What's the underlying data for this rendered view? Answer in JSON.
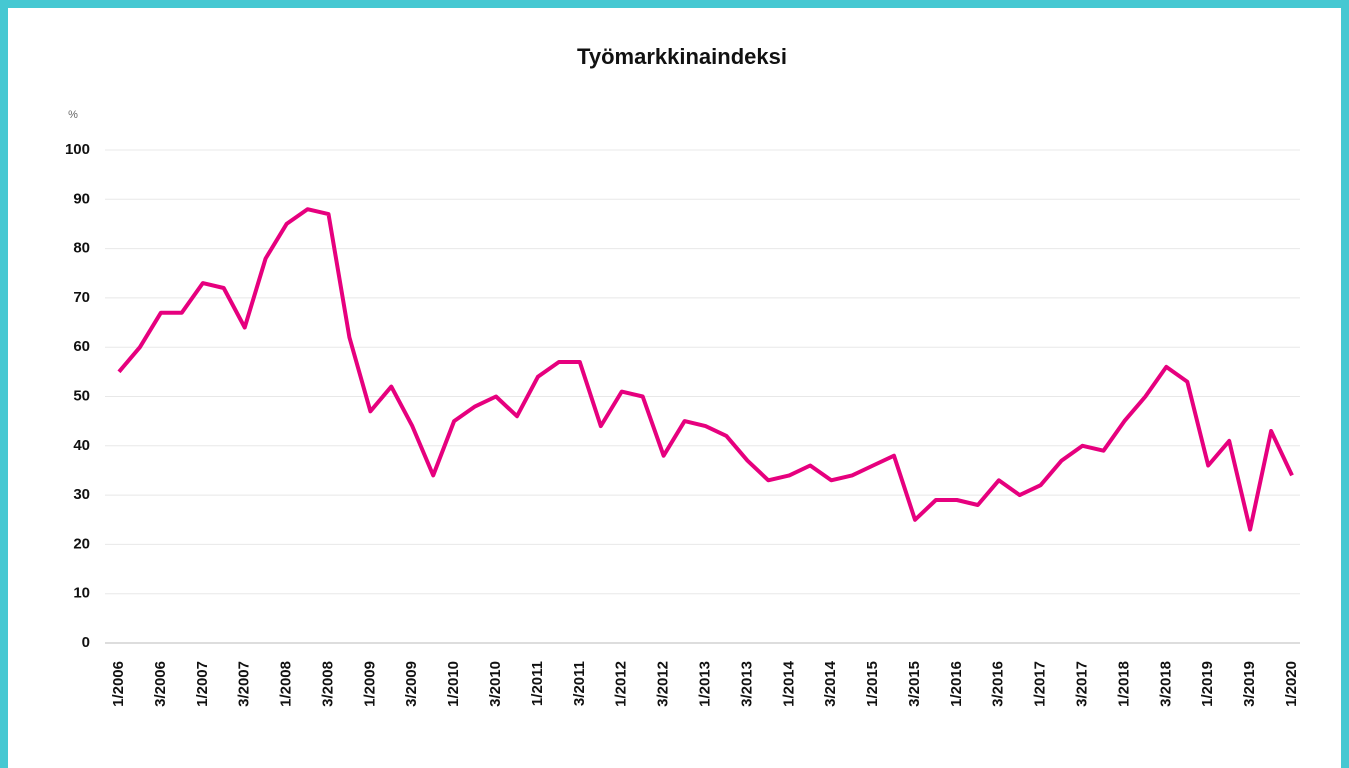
{
  "chart_data": {
    "type": "line",
    "title": "Työmarkkinaindeksi",
    "y_axis_label": "%",
    "categories": [
      "1/2006",
      null,
      "3/2006",
      null,
      "1/2007",
      null,
      "3/2007",
      null,
      "1/2008",
      null,
      "3/2008",
      null,
      "1/2009",
      null,
      "3/2009",
      null,
      "1/2010",
      null,
      "3/2010",
      null,
      "1/2011",
      null,
      "3/2011",
      null,
      "1/2012",
      null,
      "3/2012",
      null,
      "1/2013",
      null,
      "3/2013",
      null,
      "1/2014",
      null,
      "3/2014",
      null,
      "1/2015",
      null,
      "3/2015",
      null,
      "1/2016",
      null,
      "3/2016",
      null,
      "1/2017",
      null,
      "3/2017",
      null,
      "1/2018",
      null,
      "3/2018",
      null,
      "1/2019",
      null,
      "3/2019",
      null,
      "1/2020"
    ],
    "series": [
      {
        "name": "Työmarkkinaindeksi",
        "color": "#e6007e",
        "values": [
          55,
          60,
          67,
          67,
          73,
          72,
          64,
          78,
          85,
          88,
          87,
          62,
          47,
          52,
          44,
          34,
          45,
          48,
          50,
          46,
          54,
          57,
          57,
          44,
          51,
          50,
          38,
          45,
          44,
          42,
          37,
          33,
          34,
          36,
          33,
          34,
          36,
          38,
          25,
          29,
          29,
          28,
          33,
          30,
          32,
          37,
          40,
          39,
          45,
          50,
          56,
          53,
          36,
          41,
          23,
          43,
          34
        ]
      }
    ],
    "ylim": [
      0,
      100
    ],
    "yticks": [
      0,
      10,
      20,
      30,
      40,
      50,
      60,
      70,
      80,
      90,
      100
    ],
    "grid": true
  }
}
